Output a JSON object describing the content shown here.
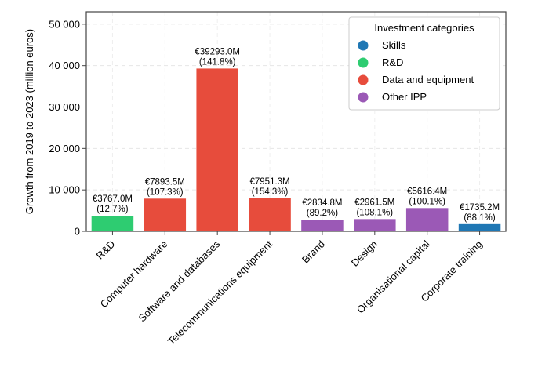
{
  "chart_data": {
    "type": "bar",
    "title": "",
    "xlabel": "",
    "ylabel": "Growth from 2019 to 2023 (million euros)",
    "ylim": [
      0,
      53000
    ],
    "yticks": [
      0,
      10000,
      20000,
      30000,
      40000,
      50000
    ],
    "ytick_labels": [
      "0",
      "10 000",
      "20 000",
      "30 000",
      "40 000",
      "50 000"
    ],
    "grid": true,
    "legend": {
      "title": "Investment categories",
      "placement": "top-right",
      "entries": [
        {
          "name": "Skills",
          "color": "#1f77b4"
        },
        {
          "name": "R&D",
          "color": "#2ecc71"
        },
        {
          "name": "Data and equipment",
          "color": "#e74c3c"
        },
        {
          "name": "Other IPP",
          "color": "#9b59b6"
        }
      ]
    },
    "bars": [
      {
        "category": "R&D",
        "value": 3767.0,
        "value_label": "€3767.0M",
        "pct_label": "(12.7%)",
        "group": "R&D",
        "color": "#2ecc71"
      },
      {
        "category": "Computer hardware",
        "value": 7893.5,
        "value_label": "€7893.5M",
        "pct_label": "(107.3%)",
        "group": "Data and equipment",
        "color": "#e74c3c"
      },
      {
        "category": "Software and databases",
        "value": 39293.0,
        "value_label": "€39293.0M",
        "pct_label": "(141.8%)",
        "group": "Data and equipment",
        "color": "#e74c3c"
      },
      {
        "category": "Telecommunications equipment",
        "value": 7951.3,
        "value_label": "€7951.3M",
        "pct_label": "(154.3%)",
        "group": "Data and equipment",
        "color": "#e74c3c"
      },
      {
        "category": "Brand",
        "value": 2834.8,
        "value_label": "€2834.8M",
        "pct_label": "(89.2%)",
        "group": "Other IPP",
        "color": "#9b59b6"
      },
      {
        "category": "Design",
        "value": 2961.5,
        "value_label": "€2961.5M",
        "pct_label": "(108.1%)",
        "group": "Other IPP",
        "color": "#9b59b6"
      },
      {
        "category": "Organisational capital",
        "value": 5616.4,
        "value_label": "€5616.4M",
        "pct_label": "(100.1%)",
        "group": "Other IPP",
        "color": "#9b59b6"
      },
      {
        "category": "Corporate training",
        "value": 1735.2,
        "value_label": "€1735.2M",
        "pct_label": "(88.1%)",
        "group": "Skills",
        "color": "#1f77b4"
      }
    ]
  }
}
